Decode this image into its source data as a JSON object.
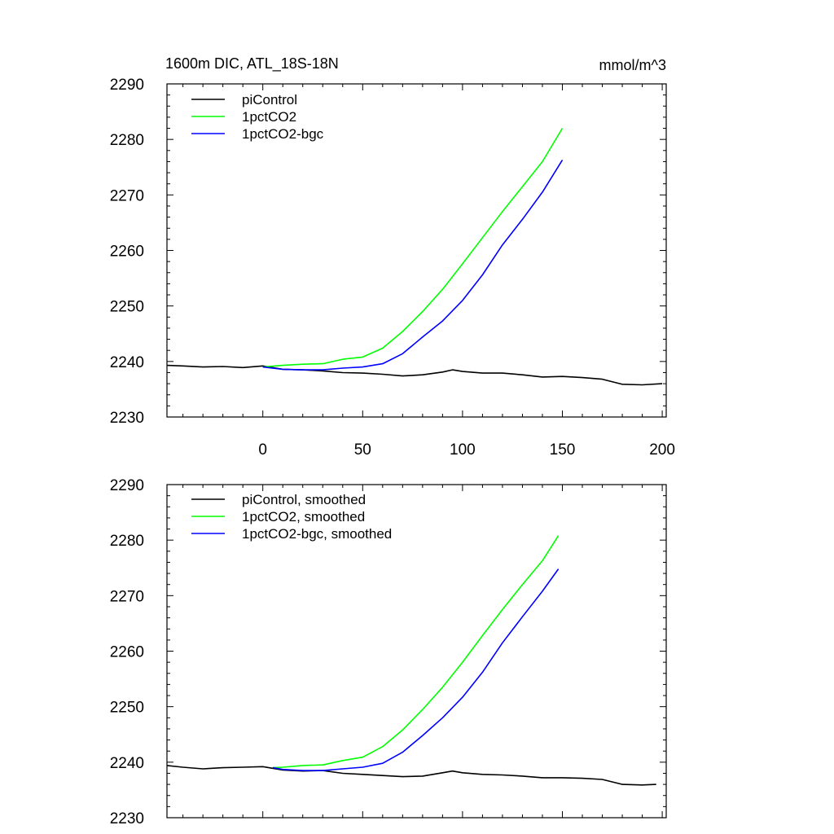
{
  "chart_data": [
    {
      "type": "line",
      "title": "1600m DIC, ATL_18S-18N",
      "units": "mmol/m^3",
      "xlim": [
        -48,
        202
      ],
      "ylim": [
        2230,
        2290
      ],
      "x_ticks": [
        0,
        50,
        100,
        150,
        200
      ],
      "x_tick_labels": [
        "0",
        "50",
        "100",
        "150",
        "200"
      ],
      "y_ticks": [
        2230,
        2240,
        2250,
        2260,
        2270,
        2280,
        2290
      ],
      "y_tick_labels": [
        "2230",
        "2240",
        "2250",
        "2260",
        "2270",
        "2280",
        "2290"
      ],
      "grid": false,
      "legend_position": "top-left",
      "series": [
        {
          "name": "piControl",
          "color": "#000000",
          "x": [
            -48,
            -40,
            -30,
            -20,
            -10,
            0,
            10,
            20,
            30,
            40,
            50,
            60,
            70,
            80,
            90,
            95,
            100,
            110,
            120,
            130,
            140,
            150,
            160,
            170,
            180,
            190,
            200
          ],
          "y": [
            2239.3,
            2239.2,
            2239.0,
            2239.1,
            2238.9,
            2239.2,
            2238.6,
            2238.5,
            2238.3,
            2238.0,
            2237.9,
            2237.7,
            2237.4,
            2237.6,
            2238.1,
            2238.5,
            2238.2,
            2237.9,
            2237.9,
            2237.6,
            2237.2,
            2237.3,
            2237.1,
            2236.8,
            2235.9,
            2235.8,
            2236.0
          ]
        },
        {
          "name": "1pctCO2",
          "color": "#00ff00",
          "x": [
            0,
            10,
            20,
            30,
            40,
            50,
            60,
            70,
            80,
            90,
            100,
            110,
            120,
            130,
            140,
            150
          ],
          "y": [
            2239.0,
            2239.3,
            2239.5,
            2239.6,
            2240.4,
            2240.8,
            2242.4,
            2245.4,
            2249.0,
            2253.0,
            2257.6,
            2262.3,
            2267.0,
            2271.5,
            2276.0,
            2282.0
          ]
        },
        {
          "name": "1pctCO2-bgc",
          "color": "#0000ff",
          "x": [
            0,
            10,
            20,
            30,
            40,
            50,
            60,
            70,
            80,
            90,
            100,
            110,
            120,
            130,
            140,
            150
          ],
          "y": [
            2239.0,
            2238.6,
            2238.5,
            2238.5,
            2238.8,
            2239.0,
            2239.6,
            2241.4,
            2244.4,
            2247.3,
            2251.0,
            2255.6,
            2261.0,
            2265.6,
            2270.5,
            2276.3
          ]
        }
      ]
    },
    {
      "type": "line",
      "xlim": [
        -48,
        202
      ],
      "ylim": [
        2230,
        2290
      ],
      "x_ticks": [
        0,
        50,
        100,
        150,
        200
      ],
      "y_ticks": [
        2230,
        2240,
        2250,
        2260,
        2270,
        2280,
        2290
      ],
      "y_tick_labels": [
        "2230",
        "2240",
        "2250",
        "2260",
        "2270",
        "2280",
        "2290"
      ],
      "grid": false,
      "legend_position": "top-left",
      "series": [
        {
          "name": "piControl, smoothed",
          "color": "#000000",
          "x": [
            -48,
            -40,
            -30,
            -20,
            -10,
            0,
            10,
            20,
            30,
            40,
            50,
            60,
            70,
            80,
            90,
            95,
            100,
            110,
            120,
            130,
            140,
            150,
            160,
            170,
            180,
            190,
            197
          ],
          "y": [
            2239.4,
            2239.1,
            2238.8,
            2239.0,
            2239.1,
            2239.2,
            2238.6,
            2238.4,
            2238.5,
            2238.0,
            2237.8,
            2237.6,
            2237.4,
            2237.5,
            2238.1,
            2238.4,
            2238.1,
            2237.8,
            2237.7,
            2237.5,
            2237.2,
            2237.2,
            2237.1,
            2236.9,
            2236.0,
            2235.9,
            2236.0
          ]
        },
        {
          "name": "1pctCO2, smoothed",
          "color": "#00ff00",
          "x": [
            5,
            10,
            20,
            30,
            40,
            50,
            60,
            70,
            80,
            90,
            100,
            110,
            120,
            130,
            140,
            148
          ],
          "y": [
            2239.0,
            2239.1,
            2239.4,
            2239.5,
            2240.3,
            2240.9,
            2242.8,
            2245.8,
            2249.5,
            2253.5,
            2258.0,
            2262.8,
            2267.5,
            2272.0,
            2276.3,
            2280.8
          ]
        },
        {
          "name": "1pctCO2-bgc, smoothed",
          "color": "#0000ff",
          "x": [
            5,
            10,
            20,
            30,
            40,
            50,
            60,
            70,
            80,
            90,
            100,
            110,
            120,
            130,
            140,
            148
          ],
          "y": [
            2239.0,
            2238.7,
            2238.5,
            2238.5,
            2238.8,
            2239.1,
            2239.8,
            2241.8,
            2244.8,
            2248.0,
            2251.7,
            2256.2,
            2261.5,
            2266.2,
            2270.8,
            2274.8
          ]
        }
      ]
    }
  ]
}
